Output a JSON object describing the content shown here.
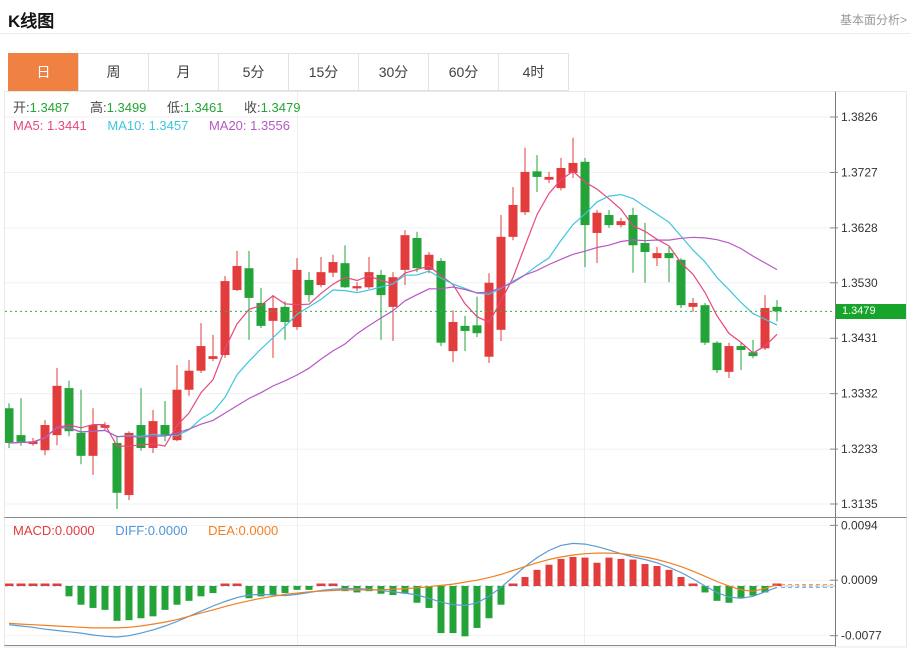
{
  "header": {
    "title": "K线图",
    "link_label": "基本面分析>"
  },
  "tabs": {
    "items": [
      "日",
      "周",
      "月",
      "5分",
      "15分",
      "30分",
      "60分",
      "4时"
    ],
    "active_index": 0,
    "active_bg": "#ef8143"
  },
  "legend": {
    "ohlc": [
      {
        "label": "开:",
        "value": "1.3487"
      },
      {
        "label": "高:",
        "value": "1.3499"
      },
      {
        "label": "低:",
        "value": "1.3461"
      },
      {
        "label": "收:",
        "value": "1.3479"
      }
    ],
    "ohlc_value_color": "#21a532",
    "ma": [
      {
        "label": "MA5:",
        "value": "1.3441",
        "color": "#e8477e"
      },
      {
        "label": "MA10:",
        "value": "1.3457",
        "color": "#3ec6e0"
      },
      {
        "label": "MA20:",
        "value": "1.3556",
        "color": "#b55ac4"
      }
    ],
    "macd": [
      {
        "label": "MACD:",
        "value": "0.0000",
        "color": "#e23c3c"
      },
      {
        "label": "DIFF:",
        "value": "0.0000",
        "color": "#4f94dd"
      },
      {
        "label": "DEA:",
        "value": "0.0000",
        "color": "#f28021"
      }
    ]
  },
  "price_axis": {
    "current_value": "1.3479",
    "badge_color": "#16a42a"
  },
  "chart_data": {
    "type": "candlestick",
    "title": "K线图 daily candlestick chart with MA5/MA10/MA20 overlays and MACD pane",
    "up_color": "#e23c3c",
    "down_color": "#23a338",
    "price_axis_ticks": [
      1.3826,
      1.3727,
      1.3628,
      1.353,
      1.3431,
      1.3332,
      1.3233,
      1.3135
    ],
    "current_price": 1.3479,
    "current_line_color": "#2fb344",
    "ma_windows": [
      5,
      10,
      20
    ],
    "ma_colors": [
      "#e8477e",
      "#3ec6e0",
      "#b55ac4"
    ],
    "candle_format": [
      "open",
      "high",
      "low",
      "close"
    ],
    "candles": [
      [
        1.3306,
        1.3315,
        1.3235,
        1.3244
      ],
      [
        1.3258,
        1.3324,
        1.3239,
        1.3246
      ],
      [
        1.3242,
        1.3253,
        1.3239,
        1.3247
      ],
      [
        1.3231,
        1.3285,
        1.3222,
        1.3276
      ],
      [
        1.3258,
        1.3378,
        1.324,
        1.3346
      ],
      [
        1.3342,
        1.3355,
        1.3256,
        1.3265
      ],
      [
        1.3262,
        1.3339,
        1.3206,
        1.3221
      ],
      [
        1.3221,
        1.3306,
        1.3187,
        1.3276
      ],
      [
        1.3271,
        1.3281,
        1.3267,
        1.3276
      ],
      [
        1.3244,
        1.3257,
        1.3126,
        1.3155
      ],
      [
        1.3151,
        1.3265,
        1.3142,
        1.3262
      ],
      [
        1.3276,
        1.3342,
        1.323,
        1.3235
      ],
      [
        1.3235,
        1.3303,
        1.3226,
        1.3283
      ],
      [
        1.3276,
        1.3319,
        1.3247,
        1.3257
      ],
      [
        1.3249,
        1.3383,
        1.3247,
        1.3339
      ],
      [
        1.3339,
        1.3392,
        1.3328,
        1.3373
      ],
      [
        1.3373,
        1.3458,
        1.3369,
        1.3417
      ],
      [
        1.3394,
        1.3437,
        1.339,
        1.3399
      ],
      [
        1.3401,
        1.3542,
        1.3396,
        1.3533
      ],
      [
        1.3517,
        1.3587,
        1.3515,
        1.356
      ],
      [
        1.3556,
        1.3587,
        1.3428,
        1.3503
      ],
      [
        1.3494,
        1.3521,
        1.3449,
        1.3453
      ],
      [
        1.3462,
        1.3508,
        1.3396,
        1.3485
      ],
      [
        1.3487,
        1.3497,
        1.3428,
        1.346
      ],
      [
        1.3451,
        1.3574,
        1.3446,
        1.3553
      ],
      [
        1.3535,
        1.3549,
        1.3496,
        1.3508
      ],
      [
        1.3526,
        1.3576,
        1.3522,
        1.3549
      ],
      [
        1.3548,
        1.358,
        1.354,
        1.3567
      ],
      [
        1.3565,
        1.3597,
        1.3521,
        1.3522
      ],
      [
        1.352,
        1.3531,
        1.3515,
        1.3524
      ],
      [
        1.3522,
        1.3576,
        1.3519,
        1.3549
      ],
      [
        1.3544,
        1.3553,
        1.3428,
        1.3508
      ],
      [
        1.3487,
        1.3549,
        1.3426,
        1.354
      ],
      [
        1.3553,
        1.3624,
        1.3526,
        1.3615
      ],
      [
        1.361,
        1.3621,
        1.3549,
        1.3556
      ],
      [
        1.3553,
        1.3585,
        1.3547,
        1.358
      ],
      [
        1.3569,
        1.3574,
        1.3417,
        1.3423
      ],
      [
        1.3408,
        1.3481,
        1.3388,
        1.346
      ],
      [
        1.3453,
        1.3471,
        1.3408,
        1.3444
      ],
      [
        1.3454,
        1.3505,
        1.3433,
        1.344
      ],
      [
        1.3398,
        1.3547,
        1.3387,
        1.353
      ],
      [
        1.3446,
        1.3651,
        1.3426,
        1.3612
      ],
      [
        1.3612,
        1.3701,
        1.3606,
        1.3669
      ],
      [
        1.3656,
        1.3771,
        1.3651,
        1.3728
      ],
      [
        1.3729,
        1.3758,
        1.3692,
        1.3719
      ],
      [
        1.3714,
        1.3728,
        1.3708,
        1.3719
      ],
      [
        1.3699,
        1.3753,
        1.3695,
        1.3735
      ],
      [
        1.3726,
        1.3789,
        1.3717,
        1.3744
      ],
      [
        1.3746,
        1.3753,
        1.3558,
        1.3633
      ],
      [
        1.3619,
        1.366,
        1.3565,
        1.3655
      ],
      [
        1.3651,
        1.366,
        1.3628,
        1.3633
      ],
      [
        1.3633,
        1.3646,
        1.3629,
        1.364
      ],
      [
        1.3651,
        1.3664,
        1.3548,
        1.3597
      ],
      [
        1.3601,
        1.3637,
        1.353,
        1.3585
      ],
      [
        1.3574,
        1.3594,
        1.356,
        1.3583
      ],
      [
        1.3583,
        1.3594,
        1.3531,
        1.3574
      ],
      [
        1.3571,
        1.3574,
        1.3485,
        1.349
      ],
      [
        1.3487,
        1.3503,
        1.3478,
        1.3494
      ],
      [
        1.349,
        1.3494,
        1.3419,
        1.3423
      ],
      [
        1.3423,
        1.3426,
        1.3369,
        1.3374
      ],
      [
        1.3371,
        1.3423,
        1.336,
        1.3417
      ],
      [
        1.3417,
        1.3423,
        1.3374,
        1.341
      ],
      [
        1.3406,
        1.3428,
        1.3395,
        1.3399
      ],
      [
        1.3413,
        1.3508,
        1.341,
        1.3485
      ],
      [
        1.3487,
        1.3499,
        1.3461,
        1.3479
      ]
    ],
    "macd": {
      "axis_ticks": [
        0.0094,
        0.0009,
        -0.0077
      ],
      "diff_color": "#5b9bd5",
      "dea_color": "#f28021",
      "zero_line_color": "#aac6dd",
      "diff": [
        -0.006,
        -0.0062,
        -0.0064,
        -0.0067,
        -0.0069,
        -0.0071,
        -0.0073,
        -0.0076,
        -0.0078,
        -0.0079,
        -0.0077,
        -0.0073,
        -0.0068,
        -0.0062,
        -0.0055,
        -0.0047,
        -0.0039,
        -0.0031,
        -0.0024,
        -0.0018,
        -0.0014,
        -0.0013,
        -0.0014,
        -0.0015,
        -0.0013,
        -0.001,
        -0.0007,
        -0.0005,
        -0.0004,
        -0.0004,
        -0.0005,
        -0.0007,
        -0.0009,
        -0.0011,
        -0.0014,
        -0.0019,
        -0.0025,
        -0.0029,
        -0.003,
        -0.0026,
        -0.0016,
        -0.0002,
        0.0014,
        0.003,
        0.0044,
        0.0055,
        0.0063,
        0.0066,
        0.0065,
        0.0061,
        0.0056,
        0.005,
        0.0045,
        0.0041,
        0.0036,
        0.0029,
        0.0021,
        0.0011,
        0.0,
        -0.001,
        -0.0017,
        -0.0019,
        -0.0016,
        -0.0009,
        -0.0002
      ],
      "dea": [
        -0.0058,
        -0.0059,
        -0.006,
        -0.0061,
        -0.0062,
        -0.0063,
        -0.0064,
        -0.0065,
        -0.0065,
        -0.0065,
        -0.0064,
        -0.0062,
        -0.0059,
        -0.0056,
        -0.0052,
        -0.0047,
        -0.0042,
        -0.0037,
        -0.0032,
        -0.0027,
        -0.0023,
        -0.0019,
        -0.0016,
        -0.0013,
        -0.0011,
        -0.0009,
        -0.0008,
        -0.0007,
        -0.0006,
        -0.0006,
        -0.0006,
        -0.0006,
        -0.0005,
        -0.0004,
        -0.0003,
        -0.0001,
        0.0001,
        0.0003,
        0.0006,
        0.0009,
        0.0013,
        0.0018,
        0.0024,
        0.003,
        0.0036,
        0.0041,
        0.0045,
        0.0048,
        0.005,
        0.0051,
        0.0051,
        0.005,
        0.0048,
        0.0045,
        0.0041,
        0.0036,
        0.003,
        0.0023,
        0.0015,
        0.0007,
        0.0,
        -0.0006,
        -0.0008,
        -0.0004,
        0.0002
      ],
      "hist": [
        0.0002,
        0.0001,
        0.0001,
        0.0002,
        0.0001,
        -0.0016,
        -0.0029,
        -0.0034,
        -0.0037,
        -0.0054,
        -0.0053,
        -0.005,
        -0.0047,
        -0.0037,
        -0.0029,
        -0.0023,
        -0.0016,
        -0.0011,
        0.0002,
        0.0001,
        -0.0019,
        -0.0016,
        -0.0014,
        -0.0011,
        -0.0006,
        -0.0006,
        0.0002,
        0.0002,
        -0.0008,
        -0.001,
        -0.0008,
        -0.0012,
        -0.0014,
        -0.0012,
        -0.0026,
        -0.0034,
        -0.0073,
        -0.0073,
        -0.0078,
        -0.0065,
        -0.005,
        -0.0029,
        0.0002,
        0.0014,
        0.0025,
        0.0033,
        0.0042,
        0.0045,
        0.0044,
        0.0036,
        0.0044,
        0.0042,
        0.0041,
        0.0034,
        0.0031,
        0.0025,
        0.0014,
        0.0003,
        -0.001,
        -0.0023,
        -0.0026,
        -0.0018,
        -0.0015,
        -0.001,
        0.0
      ]
    }
  }
}
